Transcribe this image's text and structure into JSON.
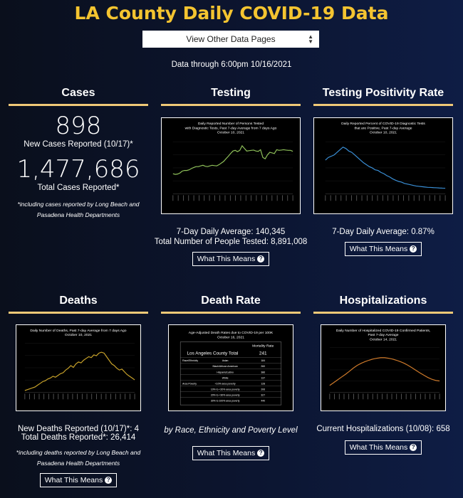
{
  "page": {
    "title": "LA County Daily COVID-19 Data",
    "select": "View Other Data Pages",
    "data_through": "Data through 6:00pm 10/16/2021"
  },
  "cases": {
    "heading": "Cases",
    "new_value": "898",
    "new_label": "New Cases Reported (10/17)*",
    "total_value": "1,477,686",
    "total_label": "Total Cases Reported*",
    "note": "*including cases reported by Long Beach and Pasadena Health Departments"
  },
  "testing": {
    "heading": "Testing",
    "chart_title": [
      "Daily Reported Number of Persons Tested",
      "with Diagnostic Tests, Past 7-day Average from 7 days Ago",
      "October 10, 2021"
    ],
    "avg": "7-Day Daily Average: 140,345",
    "total": "Total Number of People Tested: 8,891,008",
    "button": "What This Means"
  },
  "positivity": {
    "heading": "Testing Positivity Rate",
    "chart_title": [
      "Daily Reported Percent of COVID-19 Diagnostic Tests",
      "that are Positive, Past 7-day Average",
      "October 10, 2021"
    ],
    "avg": "7-Day Daily Average: 0.87%",
    "button": "What This Means"
  },
  "deaths": {
    "heading": "Deaths",
    "chart_title": [
      "Daily Number of Deaths, Past 7-day Average from 7 days Ago",
      "October 10, 2021"
    ],
    "new": "New Deaths Reported (10/17)*: 4",
    "total": "Total Deaths Reported*: 26,414",
    "note": "*including deaths reported by Long Beach and Pasadena Health Departments",
    "button": "What This Means"
  },
  "death_rate": {
    "heading": "Death Rate",
    "chart_title": [
      "Age-Adjusted Death Rates due to COVID-19 per 100K",
      "October 16, 2021"
    ],
    "table_header": "Mortality Rate",
    "total_label": "Los Angeles County Total",
    "total_value": "241",
    "rows": [
      {
        "group": "Race/Ethnicity",
        "label": "Asian",
        "value": "184"
      },
      {
        "group": "",
        "label": "Black/African American",
        "value": "260"
      },
      {
        "group": "",
        "label": "Hispanic/Latino",
        "value": "386"
      },
      {
        "group": "",
        "label": "White",
        "value": "137"
      },
      {
        "group": "Area Poverty",
        "label": "<10% area poverty",
        "value": "128"
      },
      {
        "group": "",
        "label": "10% to <20% area poverty",
        "value": "206"
      },
      {
        "group": "",
        "label": "20% to <30% area poverty",
        "value": "327"
      },
      {
        "group": "",
        "label": "30% to 100% area poverty",
        "value": "440"
      }
    ],
    "caption": "by Race, Ethnicity and Poverty Level",
    "button": "What This Means"
  },
  "hospitalizations": {
    "heading": "Hospitalizations",
    "chart_title": [
      "Daily Number of Hospitalized COVID-19 Confirmed Patients,",
      "Past 7-day Average",
      "October 14, 2021"
    ],
    "current": "Current Hospitalizations (10/08): 658",
    "button": "What This Means"
  },
  "chart_data": [
    {
      "type": "line",
      "id": "testing",
      "values": [
        62,
        60,
        61,
        64,
        70,
        72,
        72,
        74,
        78,
        81,
        84,
        84,
        86,
        88,
        85,
        84,
        86,
        88,
        87,
        86,
        90,
        95,
        100,
        108,
        116,
        124,
        132,
        134,
        130,
        134,
        148,
        140,
        132,
        133,
        134,
        135,
        132,
        131,
        136,
        112,
        108,
        120,
        128,
        126,
        124,
        136,
        134,
        135,
        136,
        135,
        134,
        134,
        131
      ],
      "ylim": [
        0,
        160
      ],
      "color": "#8fc15a"
    },
    {
      "type": "line",
      "id": "positivity",
      "values": [
        5.2,
        5.6,
        5.8,
        6.0,
        6.4,
        6.8,
        7.2,
        7.0,
        6.6,
        6.4,
        6.0,
        5.6,
        5.2,
        4.8,
        4.5,
        4.2,
        4.0,
        3.7,
        3.6,
        3.3,
        3.1,
        2.8,
        2.6,
        2.3,
        2.1,
        1.9,
        1.8,
        1.6,
        1.5,
        1.4,
        1.3,
        1.2,
        1.15,
        1.1,
        1.05,
        1.0,
        0.98,
        0.95,
        0.93,
        0.9,
        0.88,
        0.87
      ],
      "ylim": [
        0,
        8
      ],
      "color": "#3a8fd6"
    },
    {
      "type": "line",
      "id": "deaths",
      "values": [
        2,
        3,
        4,
        5,
        6,
        8,
        10,
        12,
        13,
        15,
        16,
        18,
        17,
        19,
        21,
        22,
        25,
        27,
        30,
        28,
        32,
        34,
        33,
        36,
        38,
        40,
        39,
        42,
        41,
        44,
        45,
        44,
        40,
        36,
        32,
        30,
        27,
        25,
        26,
        23,
        20,
        18,
        16,
        14
      ],
      "ylim": [
        0,
        55
      ],
      "color": "#c9a32a"
    },
    {
      "type": "line",
      "id": "hosp",
      "values": [
        400,
        560,
        720,
        880,
        1040,
        1220,
        1400,
        1560,
        1680,
        1780,
        1860,
        1930,
        1980,
        2010,
        2010,
        1980,
        1930,
        1860,
        1780,
        1680,
        1560,
        1420,
        1270,
        1130,
        990,
        860,
        760,
        690,
        660
      ],
      "ylim": [
        0,
        2600
      ],
      "color": "#cf7a2a"
    }
  ]
}
